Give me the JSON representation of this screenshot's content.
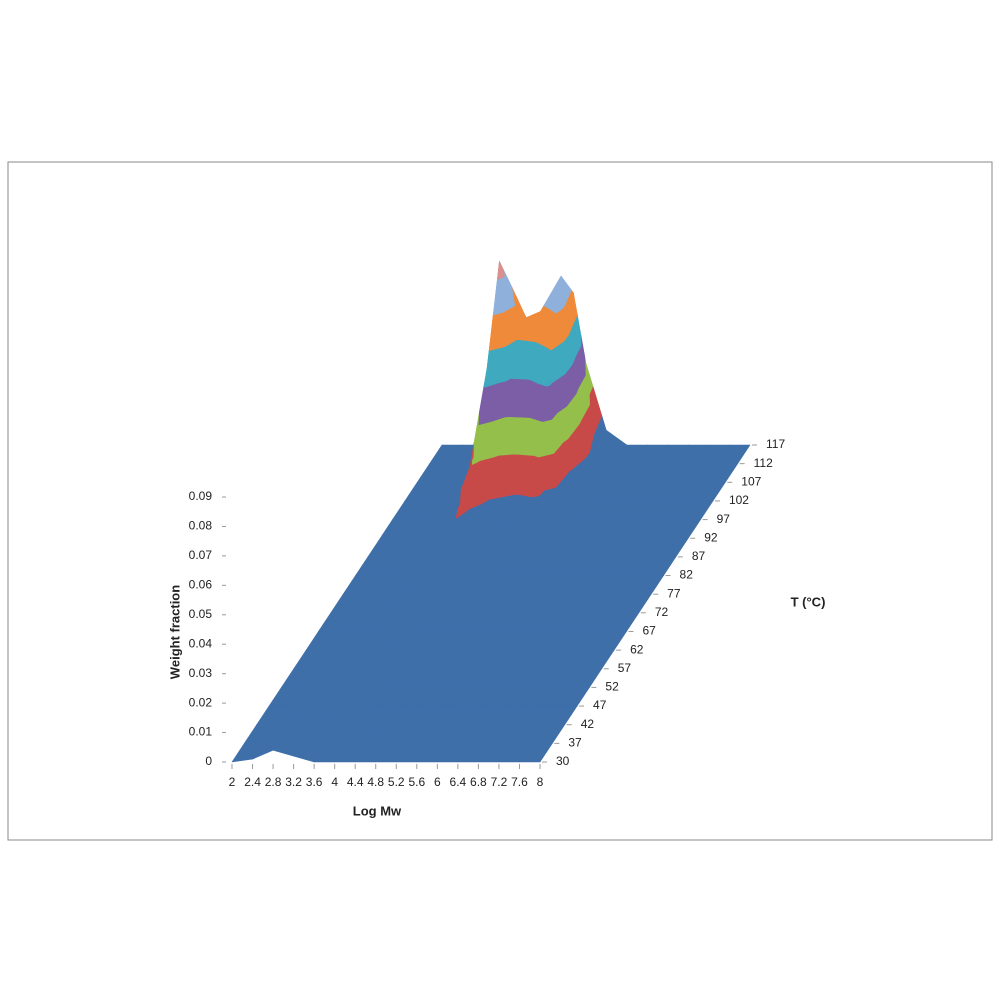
{
  "chart_data": {
    "type": "surface",
    "xlabel": "Log Mw",
    "ylabel": "T (°C)",
    "zlabel": "Weight fraction",
    "categories": [
      2,
      2.4,
      2.8,
      3.2,
      3.6,
      4,
      4.4,
      4.8,
      5.2,
      5.6,
      6,
      6.4,
      6.8,
      7.2,
      7.6,
      8
    ],
    "zlim": [
      0,
      0.09
    ],
    "zticks": [
      0,
      0.01,
      0.02,
      0.03,
      0.04,
      0.05,
      0.06,
      0.07,
      0.08,
      0.09
    ],
    "band_colors": [
      "#3f6fa9",
      "#c84a48",
      "#94bf4a",
      "#7b5ea6",
      "#3fa9bf",
      "#ef8a3a",
      "#8fb0da",
      "#d9908e",
      "#b7d36a"
    ],
    "series": [
      {
        "name": 30,
        "values": [
          0,
          0.001,
          0.004,
          0.002,
          0,
          0,
          0,
          0,
          0,
          0,
          0,
          0,
          0,
          0,
          0,
          0
        ]
      },
      {
        "name": 37,
        "values": [
          0,
          0,
          0.004,
          0.003,
          0,
          0,
          0,
          0,
          0,
          0,
          0,
          0,
          0,
          0,
          0,
          0
        ]
      },
      {
        "name": 42,
        "values": [
          0,
          0,
          0.003,
          0.004,
          0,
          0,
          0,
          0,
          0,
          0,
          0,
          0,
          0,
          0,
          0,
          0
        ]
      },
      {
        "name": 47,
        "values": [
          0,
          0,
          0.002,
          0.004,
          0.001,
          0,
          0,
          0,
          0,
          0,
          0,
          0,
          0,
          0,
          0,
          0
        ]
      },
      {
        "name": 52,
        "values": [
          0,
          0,
          0.001,
          0.004,
          0.002,
          0,
          0,
          0,
          0,
          0,
          0,
          0,
          0,
          0,
          0,
          0
        ]
      },
      {
        "name": 57,
        "values": [
          0,
          0,
          0,
          0.004,
          0.003,
          0,
          0,
          0,
          0,
          0,
          0,
          0,
          0,
          0,
          0,
          0
        ]
      },
      {
        "name": 62,
        "values": [
          0,
          0,
          0,
          0.004,
          0.003,
          0,
          0,
          0,
          0,
          0,
          0,
          0,
          0,
          0,
          0,
          0
        ]
      },
      {
        "name": 67,
        "values": [
          0,
          0,
          0,
          0.003,
          0.004,
          0,
          0,
          0,
          0,
          0,
          0,
          0,
          0,
          0,
          0,
          0
        ]
      },
      {
        "name": 72,
        "values": [
          0,
          0,
          0,
          0.003,
          0.005,
          0.001,
          0,
          0,
          0,
          0,
          0,
          0,
          0,
          0,
          0,
          0
        ]
      },
      {
        "name": 77,
        "values": [
          0,
          0,
          0,
          0.002,
          0.005,
          0.002,
          0,
          0,
          0,
          0,
          0,
          0,
          0,
          0,
          0,
          0
        ]
      },
      {
        "name": 82,
        "values": [
          0,
          0,
          0,
          0.002,
          0.006,
          0.002,
          0.001,
          0,
          0,
          0,
          0,
          0,
          0,
          0,
          0,
          0
        ]
      },
      {
        "name": 87,
        "values": [
          0,
          0,
          0,
          0.002,
          0.008,
          0.003,
          0.002,
          0.001,
          0,
          0,
          0,
          0,
          0,
          0,
          0,
          0
        ]
      },
      {
        "name": 92,
        "values": [
          0,
          0,
          0,
          0.003,
          0.012,
          0.006,
          0.004,
          0.003,
          0.001,
          0,
          0,
          0,
          0,
          0,
          0,
          0
        ]
      },
      {
        "name": 97,
        "values": [
          0,
          0,
          0,
          0.004,
          0.022,
          0.014,
          0.012,
          0.014,
          0.004,
          0,
          0,
          0,
          0,
          0,
          0,
          0
        ]
      },
      {
        "name": 102,
        "values": [
          0,
          0,
          0,
          0.005,
          0.045,
          0.035,
          0.036,
          0.045,
          0.01,
          0,
          0,
          0,
          0,
          0,
          0,
          0
        ]
      },
      {
        "name": 107,
        "values": [
          0,
          0,
          0,
          0.006,
          0.075,
          0.055,
          0.058,
          0.07,
          0.015,
          0.002,
          0,
          0,
          0,
          0,
          0,
          0
        ]
      },
      {
        "name": 112,
        "values": [
          0,
          0,
          0,
          0.004,
          0.06,
          0.045,
          0.047,
          0.058,
          0.01,
          0,
          0,
          0,
          0,
          0,
          0,
          0
        ]
      },
      {
        "name": 117,
        "values": [
          0,
          0,
          0,
          0.002,
          0.03,
          0.02,
          0.022,
          0.028,
          0.005,
          0,
          0,
          0,
          0,
          0,
          0,
          0
        ]
      }
    ]
  }
}
